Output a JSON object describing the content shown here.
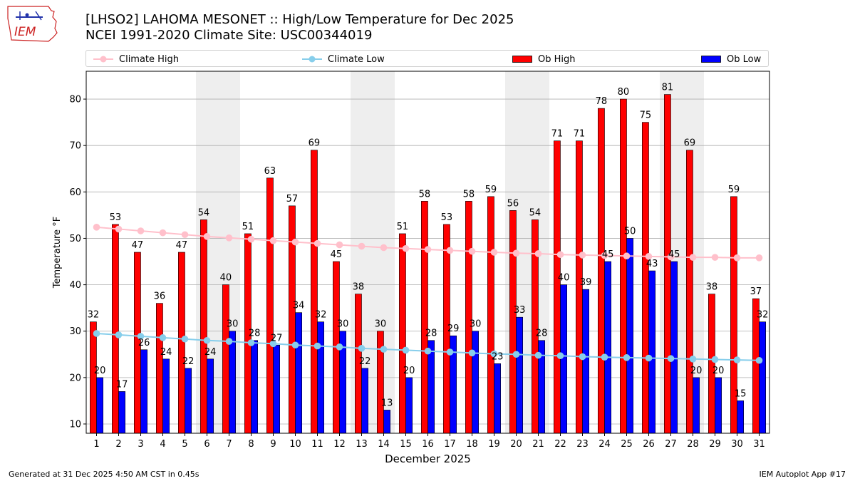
{
  "logo": {
    "text": "IEM",
    "color": "#cc2222"
  },
  "title_line1": "[LHSO2] LAHOMA MESONET :: High/Low Temperature for Dec 2025",
  "title_line2": "NCEI 1991-2020 Climate Site: USC00344019",
  "legend": {
    "climate_high": "Climate High",
    "climate_low": "Climate Low",
    "ob_high": "Ob High",
    "ob_low": "Ob Low"
  },
  "footer_left": "Generated at 31 Dec 2025 4:50 AM CST in 0.45s",
  "footer_right": "IEM Autoplot App #17",
  "colors": {
    "ob_high": "#ff0000",
    "ob_low": "#0000ff",
    "climate_high": "#ffc0cb",
    "climate_low": "#87ceeb",
    "weekend_shade": "#eeeeee",
    "grid": "#b0b0b0"
  },
  "chart_data": {
    "type": "bar",
    "xlabel": "December 2025",
    "ylabel": "Temperature °F",
    "ylim": [
      8,
      86
    ],
    "yticks": [
      10,
      20,
      30,
      40,
      50,
      60,
      70,
      80
    ],
    "grid": "horizontal",
    "legend_placement": "top",
    "shaded_week_bands": [
      [
        6,
        7
      ],
      [
        13,
        14
      ],
      [
        20,
        21
      ],
      [
        27,
        28
      ]
    ],
    "categories": [
      1,
      2,
      3,
      4,
      5,
      6,
      7,
      8,
      9,
      10,
      11,
      12,
      13,
      14,
      15,
      16,
      17,
      18,
      19,
      20,
      21,
      22,
      23,
      24,
      25,
      26,
      27,
      28,
      29,
      30,
      31
    ],
    "series": [
      {
        "name": "Ob High",
        "kind": "bar",
        "values": [
          32,
          53,
          47,
          36,
          47,
          54,
          40,
          51,
          63,
          57,
          69,
          45,
          38,
          30,
          51,
          58,
          53,
          58,
          59,
          56,
          54,
          71,
          71,
          78,
          80,
          75,
          81,
          69,
          38,
          59,
          37
        ]
      },
      {
        "name": "Ob Low",
        "kind": "bar",
        "values": [
          20,
          17,
          26,
          24,
          22,
          24,
          30,
          28,
          27,
          34,
          32,
          30,
          22,
          13,
          20,
          28,
          29,
          30,
          23,
          33,
          28,
          40,
          39,
          45,
          50,
          43,
          45,
          20,
          20,
          15,
          32
        ]
      },
      {
        "name": "Climate High",
        "kind": "line",
        "values": [
          52.4,
          52.0,
          51.6,
          51.2,
          50.8,
          50.4,
          50.1,
          49.8,
          49.5,
          49.2,
          48.9,
          48.6,
          48.3,
          48.0,
          47.8,
          47.6,
          47.4,
          47.2,
          47.0,
          46.8,
          46.7,
          46.5,
          46.4,
          46.3,
          46.2,
          46.1,
          46.0,
          45.9,
          45.9,
          45.8,
          45.8
        ]
      },
      {
        "name": "Climate Low",
        "kind": "line",
        "values": [
          29.5,
          29.2,
          28.9,
          28.6,
          28.3,
          28.0,
          27.8,
          27.5,
          27.3,
          27.0,
          26.8,
          26.6,
          26.3,
          26.1,
          25.9,
          25.7,
          25.5,
          25.3,
          25.1,
          25.0,
          24.8,
          24.7,
          24.5,
          24.4,
          24.3,
          24.2,
          24.1,
          24.0,
          23.9,
          23.8,
          23.7
        ]
      }
    ]
  }
}
